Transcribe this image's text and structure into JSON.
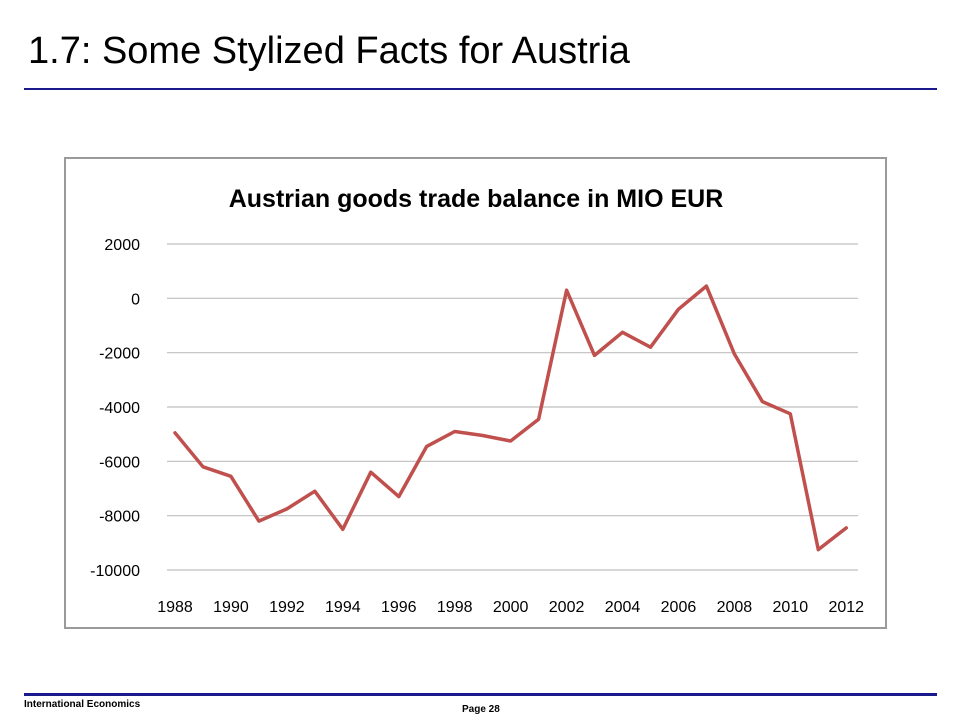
{
  "slide": {
    "title": "1.7: Some Stylized Facts for Austria",
    "footer_left": "International Economics",
    "footer_page": "Page 28"
  },
  "colors": {
    "line": "#c0504d",
    "gridline": "#bfbfbf",
    "rule": "#1a1a8c"
  },
  "chart_data": {
    "type": "line",
    "title": "Austrian goods trade balance in MIO EUR",
    "xlabel": "",
    "ylabel": "",
    "ylim": [
      -10000,
      2000
    ],
    "yticks": [
      2000,
      0,
      -2000,
      -4000,
      -6000,
      -8000,
      -10000
    ],
    "ytick_labels": [
      "2000",
      "0",
      "-2000",
      "-4000",
      "-6000",
      "-8000",
      "-10000"
    ],
    "xtick_labels": [
      "1988",
      "1990",
      "1992",
      "1994",
      "1996",
      "1998",
      "2000",
      "2002",
      "2004",
      "2006",
      "2008",
      "2010",
      "2012"
    ],
    "grid": true,
    "legend": false,
    "series": [
      {
        "x": [
          1988,
          1989,
          1990,
          1991,
          1992,
          1993,
          1994,
          1995,
          1996,
          1997,
          1998,
          1999,
          2000,
          2001,
          2002,
          2003,
          2004,
          2005,
          2006,
          2007,
          2008,
          2009,
          2010,
          2011,
          2012
        ],
        "values": [
          -4950,
          -6200,
          -6550,
          -8200,
          -7750,
          -7100,
          -8500,
          -6400,
          -7300,
          -5450,
          -4900,
          -5050,
          -5250,
          -4450,
          300,
          -2100,
          -1250,
          -1800,
          -400,
          450,
          -2050,
          -3800,
          -4250,
          -9250,
          -8450
        ]
      }
    ]
  }
}
